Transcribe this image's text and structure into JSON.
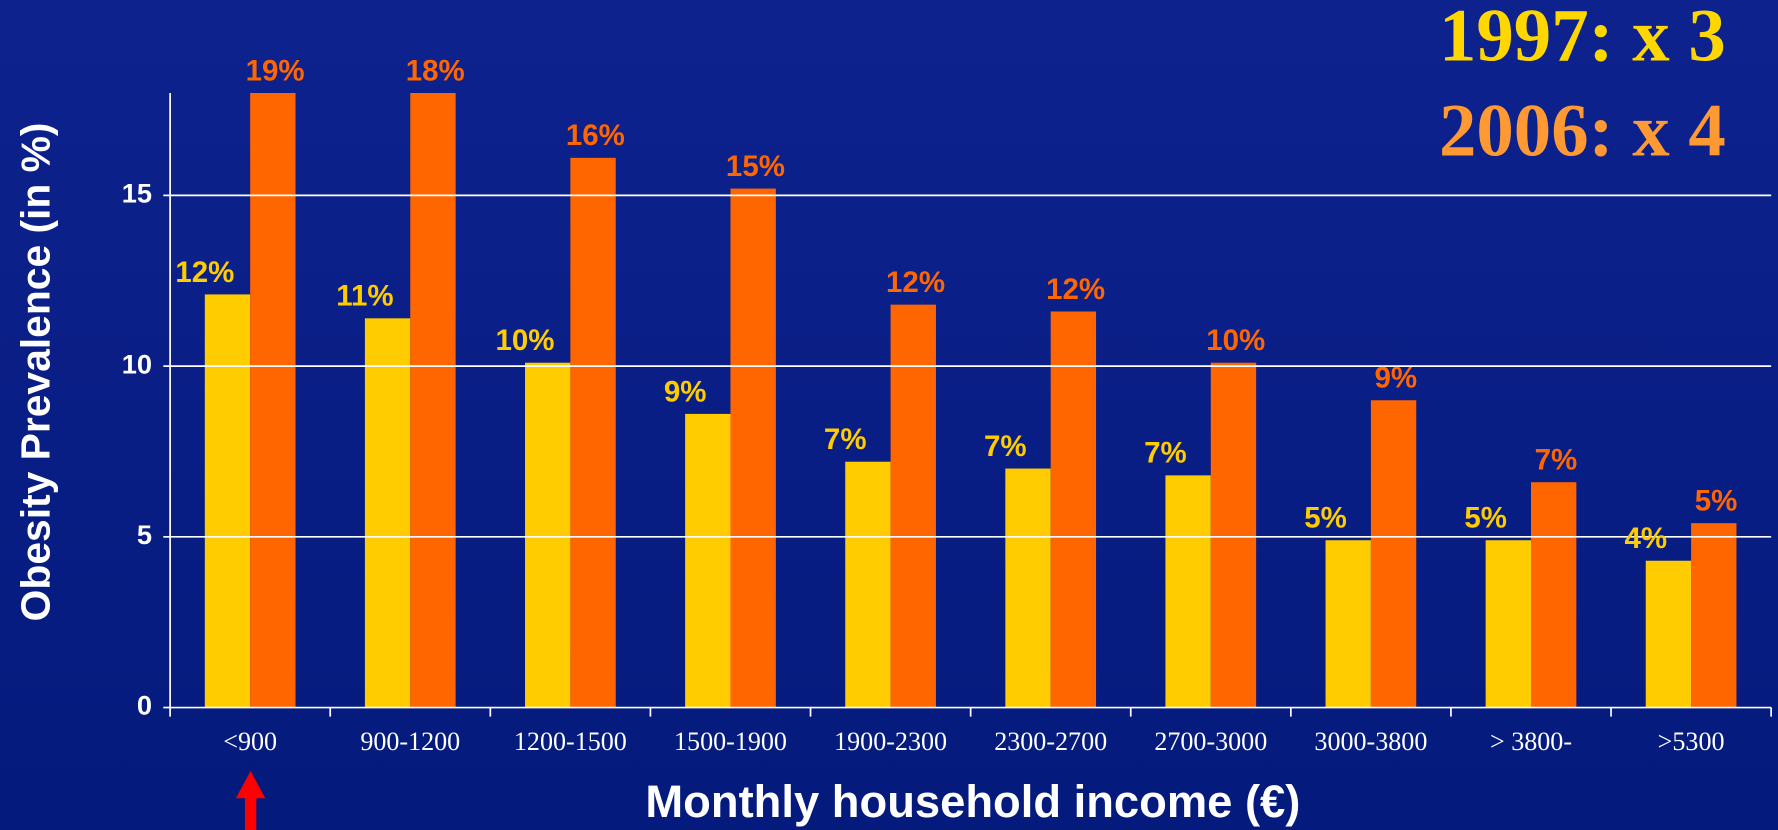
{
  "chart_data": {
    "type": "bar",
    "xlabel": "Monthly household income (€)",
    "ylabel": "Obesity Prevalence (in %)",
    "annotations": [
      {
        "text": "1997: x 3",
        "color": "#ffd700"
      },
      {
        "text": "2006: x 4",
        "color": "#ff9933"
      }
    ],
    "categories": [
      "<900",
      "900-1200",
      "1200-1500",
      "1500-1900",
      "1900-2300",
      "2300-2700",
      "2700-3000",
      "3000-3800",
      "> 3800-",
      ">5300"
    ],
    "series": [
      {
        "color": "#ffcc00",
        "values": [
          12.1,
          11.4,
          10.1,
          8.6,
          7.2,
          7.0,
          6.8,
          4.9,
          4.9,
          4.3
        ],
        "value_labels": [
          "12%",
          "11%",
          "10%",
          "9%",
          "7%",
          "7%",
          "7%",
          "5%",
          "5%",
          "4%"
        ]
      },
      {
        "color": "#ff6600",
        "values": [
          19,
          18,
          16.1,
          15.2,
          11.8,
          11.6,
          10.1,
          9.0,
          6.6,
          5.4
        ],
        "value_labels": [
          "19%",
          "18%",
          "16%",
          "15%",
          "12%",
          "12%",
          "10%",
          "9%",
          "7%",
          "5%"
        ]
      }
    ],
    "ylim": [
      0,
      18
    ],
    "yticks": [
      0,
      5,
      10,
      15
    ],
    "grid": true
  }
}
